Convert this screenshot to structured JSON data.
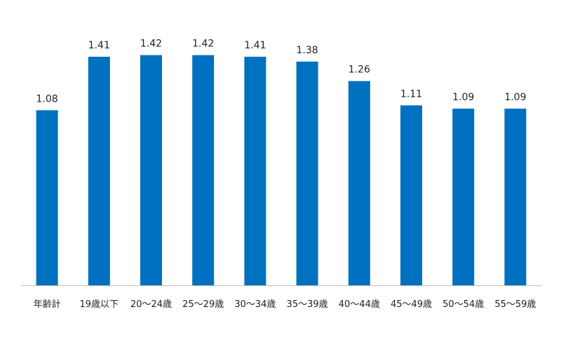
{
  "chart_data": {
    "type": "bar",
    "categories": [
      "年齢計",
      "19歳以下",
      "20～24歳",
      "25～29歳",
      "30～34歳",
      "35～39歳",
      "40～44歳",
      "45～49歳",
      "50～54歳",
      "55～59歳"
    ],
    "values": [
      1.08,
      1.41,
      1.42,
      1.42,
      1.41,
      1.38,
      1.26,
      1.11,
      1.09,
      1.09
    ],
    "value_labels": [
      "1.08",
      "1.41",
      "1.42",
      "1.42",
      "1.41",
      "1.38",
      "1.26",
      "1.11",
      "1.09",
      "1.09"
    ],
    "title": "",
    "xlabel": "",
    "ylabel": "",
    "ylim": [
      0,
      1.6
    ],
    "grid": false,
    "legend": "none",
    "bar_color": "#0070C0",
    "axis_color": "#BFBFBF"
  }
}
